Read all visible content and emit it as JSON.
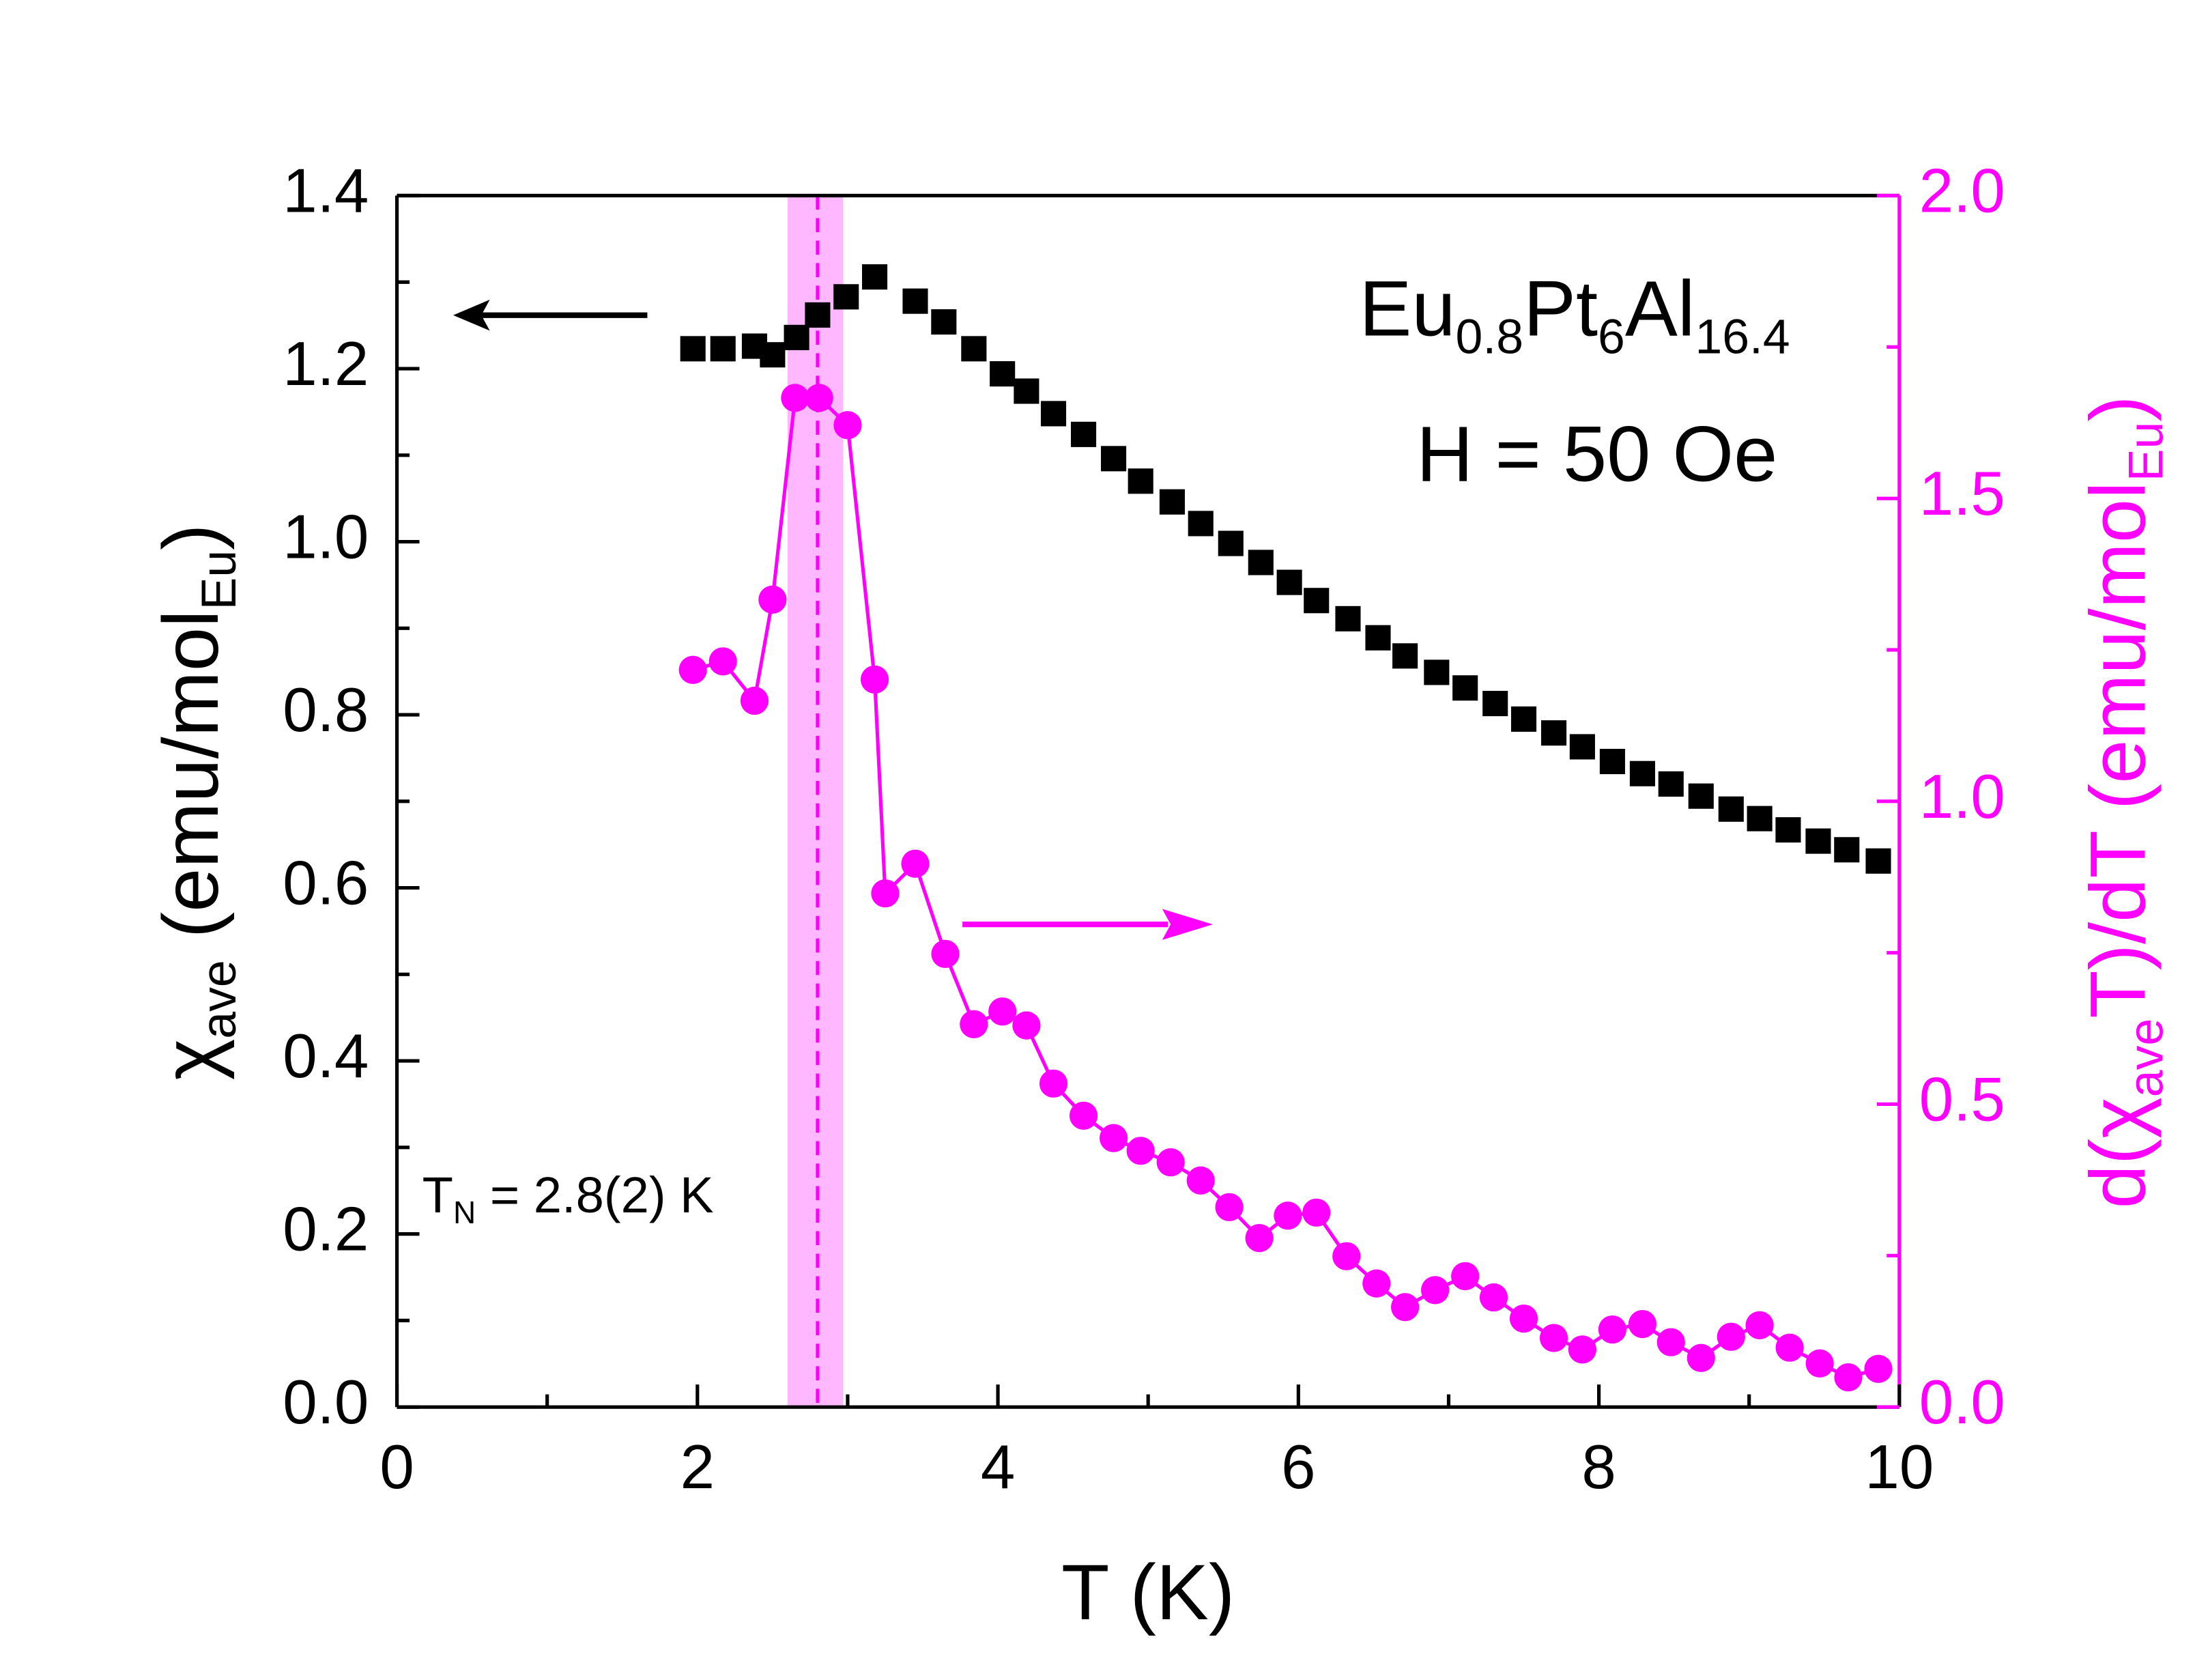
{
  "chart_data": {
    "type": "scatter",
    "xlabel": [
      "T (K)"
    ],
    "ylabel": [
      "χ",
      "ave",
      " (emu/mol",
      "Eu",
      ")"
    ],
    "y2label": [
      "d(χ",
      "ave",
      "T)/dT (emu/mol",
      "Eu",
      ")"
    ],
    "annotations": {
      "compound": [
        "Eu",
        "0.8",
        "Pt",
        "6",
        "Al",
        "16.4"
      ],
      "field": [
        "H = 50 Oe"
      ],
      "transition": [
        "T",
        "N",
        " = 2.8(2) K"
      ]
    },
    "band": [
      2.6,
      2.97
    ],
    "band_color": "#ffb8ff",
    "dashed_line": 2.8,
    "xlim": [
      0,
      10
    ],
    "xticks": [
      0,
      2,
      4,
      6,
      8,
      10
    ],
    "xminorticks": [
      1,
      3,
      5,
      7,
      9
    ],
    "ylim": [
      0,
      1.4
    ],
    "yticks": [
      {
        "value": 0,
        "label": "0.0"
      },
      0.2,
      0.4,
      0.6,
      0.8,
      {
        "value": 1,
        "label": "1.0"
      },
      1.2,
      1.4
    ],
    "yminorticks": [
      0.1,
      0.3,
      0.5,
      0.7,
      0.9,
      1.1,
      1.3
    ],
    "y2lim": [
      0,
      2
    ],
    "y2ticks": [
      {
        "value": 0,
        "label": "0.0"
      },
      0.5,
      {
        "value": 1,
        "label": "1.0"
      },
      1.5,
      {
        "value": 2,
        "label": "2.0"
      }
    ],
    "y2minorticks": [
      0.25,
      0.75,
      1.25,
      1.75
    ],
    "series": [
      {
        "marker": "square",
        "color": "#000000",
        "axis": "y",
        "x": [
          1.97,
          2.17,
          2.38,
          2.5,
          2.66,
          2.8,
          2.99,
          3.18,
          3.45,
          3.64,
          3.84,
          4.03,
          4.19,
          4.37,
          4.57,
          4.77,
          4.95,
          5.16,
          5.35,
          5.55,
          5.75,
          5.94,
          6.12,
          6.33,
          6.53,
          6.71,
          6.92,
          7.11,
          7.31,
          7.5,
          7.7,
          7.89,
          8.09,
          8.29,
          8.48,
          8.68,
          8.88,
          9.07,
          9.26,
          9.46,
          9.65,
          9.86
        ],
        "values": [
          1.223,
          1.223,
          1.226,
          1.216,
          1.236,
          1.262,
          1.283,
          1.306,
          1.278,
          1.254,
          1.223,
          1.194,
          1.174,
          1.148,
          1.124,
          1.096,
          1.07,
          1.046,
          1.021,
          0.998,
          0.976,
          0.953,
          0.932,
          0.911,
          0.889,
          0.868,
          0.849,
          0.831,
          0.813,
          0.795,
          0.779,
          0.763,
          0.746,
          0.732,
          0.72,
          0.706,
          0.691,
          0.68,
          0.667,
          0.654,
          0.644,
          0.631
        ]
      },
      {
        "marker": "circle",
        "color": "#ff00ff",
        "axis": "y2",
        "connect": true,
        "x": [
          1.97,
          2.17,
          2.38,
          2.5,
          2.65,
          2.81,
          3.0,
          3.18,
          3.25,
          3.45,
          3.65,
          3.84,
          4.03,
          4.19,
          4.37,
          4.57,
          4.77,
          4.95,
          5.15,
          5.35,
          5.54,
          5.74,
          5.93,
          6.12,
          6.32,
          6.52,
          6.71,
          6.91,
          7.11,
          7.3,
          7.5,
          7.7,
          7.89,
          8.09,
          8.29,
          8.48,
          8.68,
          8.88,
          9.07,
          9.27,
          9.47,
          9.66,
          9.86
        ],
        "values": [
          1.217,
          1.231,
          1.166,
          1.333,
          1.666,
          1.666,
          1.621,
          1.201,
          0.848,
          0.897,
          0.748,
          0.632,
          0.653,
          0.63,
          0.534,
          0.481,
          0.444,
          0.423,
          0.404,
          0.374,
          0.33,
          0.279,
          0.316,
          0.321,
          0.249,
          0.204,
          0.165,
          0.193,
          0.216,
          0.181,
          0.146,
          0.114,
          0.095,
          0.128,
          0.137,
          0.107,
          0.081,
          0.116,
          0.135,
          0.098,
          0.072,
          0.049,
          0.063
        ]
      }
    ]
  }
}
